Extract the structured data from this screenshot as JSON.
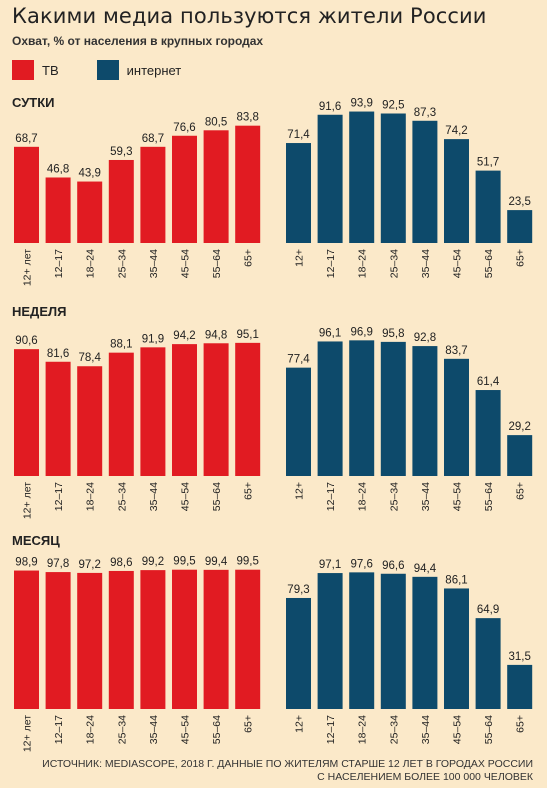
{
  "title": "Какими медиа пользуются жители России",
  "subtitle": "Охват, % от населения в крупных городах",
  "legend": [
    {
      "label": "ТВ",
      "color": "#e11b22"
    },
    {
      "label": "интернет",
      "color": "#0d4a6b"
    }
  ],
  "source_line1": "ИСТОЧНИК: MEDIASCOPE, 2018 Г. ДАННЫЕ ПО ЖИТЕЛЯМ СТАРШЕ 12 ЛЕТ В ГОРОДАХ РОССИИ",
  "source_line2": "С НАСЕЛЕНИЕМ БОЛЕЕ 100 000 ЧЕЛОВЕК",
  "chart_data": [
    {
      "type": "bar",
      "title": "СУТКИ",
      "ylim": [
        0,
        100
      ],
      "series": [
        {
          "name": "ТВ",
          "categories": [
            "12+ лет",
            "12–17",
            "18–24",
            "25–34",
            "35–44",
            "45–54",
            "55–64",
            "65+"
          ],
          "values": [
            68.7,
            46.8,
            43.9,
            59.3,
            68.7,
            76.6,
            80.5,
            83.8
          ],
          "labels": [
            "68,7",
            "46,8",
            "43,9",
            "59,3",
            "68,7",
            "76,6",
            "80,5",
            "83,8"
          ]
        },
        {
          "name": "интернет",
          "categories": [
            "12+",
            "12–17",
            "18–24",
            "25–34",
            "35–44",
            "45–54",
            "55–64",
            "65+"
          ],
          "values": [
            71.4,
            91.6,
            93.9,
            92.5,
            87.3,
            74.2,
            51.7,
            23.5
          ],
          "labels": [
            "71,4",
            "91,6",
            "93,9",
            "92,5",
            "87,3",
            "74,2",
            "51,7",
            "23,5"
          ]
        }
      ]
    },
    {
      "type": "bar",
      "title": "НЕДЕЛЯ",
      "ylim": [
        0,
        100
      ],
      "series": [
        {
          "name": "ТВ",
          "categories": [
            "12+ лет",
            "12–17",
            "18–24",
            "25–34",
            "35–44",
            "45–54",
            "55–64",
            "65+"
          ],
          "values": [
            90.6,
            81.6,
            78.4,
            88.1,
            91.9,
            94.2,
            94.8,
            95.1
          ],
          "labels": [
            "90,6",
            "81,6",
            "78,4",
            "88,1",
            "91,9",
            "94,2",
            "94,8",
            "95,1"
          ]
        },
        {
          "name": "интернет",
          "categories": [
            "12+",
            "12–17",
            "18–24",
            "25–34",
            "35–44",
            "45–54",
            "55–64",
            "65+"
          ],
          "values": [
            77.4,
            96.1,
            96.9,
            95.8,
            92.8,
            83.7,
            61.4,
            29.2
          ],
          "labels": [
            "77,4",
            "96,1",
            "96,9",
            "95,8",
            "92,8",
            "83,7",
            "61,4",
            "29,2"
          ]
        }
      ]
    },
    {
      "type": "bar",
      "title": "МЕСЯЦ",
      "ylim": [
        0,
        100
      ],
      "series": [
        {
          "name": "ТВ",
          "categories": [
            "12+ лет",
            "12–17",
            "18–24",
            "25–34",
            "35–44",
            "45–54",
            "55–64",
            "65+"
          ],
          "values": [
            98.9,
            97.8,
            97.2,
            98.6,
            99.2,
            99.5,
            99.4,
            99.5
          ],
          "labels": [
            "98,9",
            "97,8",
            "97,2",
            "98,6",
            "99,2",
            "99,5",
            "99,4",
            "99,5"
          ]
        },
        {
          "name": "интернет",
          "categories": [
            "12+",
            "12–17",
            "18–24",
            "25–34",
            "35–44",
            "45–54",
            "55–64",
            "65+"
          ],
          "values": [
            79.3,
            97.1,
            97.6,
            96.6,
            94.4,
            86.1,
            64.9,
            31.5
          ],
          "labels": [
            "79,3",
            "97,1",
            "97,6",
            "96,6",
            "94,4",
            "86,1",
            "64,9",
            "31,5"
          ]
        }
      ]
    }
  ]
}
